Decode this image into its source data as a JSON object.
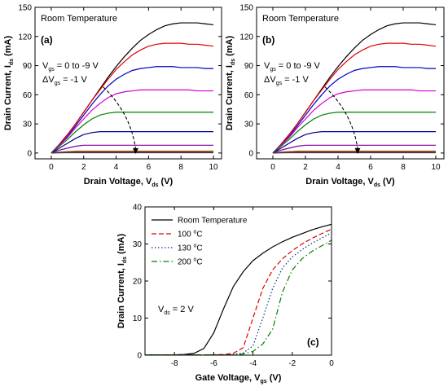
{
  "chart_data": [
    {
      "type": "line",
      "panel_label": "(a)",
      "annotation_title": "Room Temperature",
      "annotation_vgs": {
        "main": "V",
        "sub": "gs",
        "rest": " = 0 to -9 V"
      },
      "annotation_dvgs": {
        "main": "ΔV",
        "sub": "gs",
        "rest": " = -1 V"
      },
      "xlabel": {
        "main": "Drain Voltage, V",
        "sub": "ds",
        "unit": " (V)"
      },
      "ylabel": {
        "main": "Drain Current, I",
        "sub": "ds",
        "unit": " (mA)"
      },
      "xlim": [
        -1,
        10.5
      ],
      "ylim": [
        -6,
        150
      ],
      "xticks": [
        0,
        2,
        4,
        6,
        8,
        10
      ],
      "yticks": [
        0,
        30,
        60,
        90,
        120,
        150
      ],
      "x": [
        0,
        0.5,
        1,
        1.5,
        2,
        2.5,
        3,
        3.5,
        4,
        4.5,
        5,
        5.5,
        6,
        6.5,
        7,
        7.5,
        8,
        8.5,
        9,
        9.5,
        10
      ],
      "series": [
        {
          "color": "#000000",
          "values": [
            0,
            9,
            19,
            30,
            42,
            54,
            66,
            78,
            89,
            99,
            108,
            116,
            122,
            127,
            131,
            133,
            134,
            134,
            134,
            133,
            132
          ]
        },
        {
          "color": "#e00000",
          "values": [
            0,
            9,
            19,
            30,
            42,
            54,
            65,
            76,
            86,
            94,
            101,
            106,
            110,
            112,
            113,
            113,
            113,
            112,
            112,
            111,
            110
          ]
        },
        {
          "color": "#0000c0",
          "values": [
            0,
            8,
            17,
            28,
            39,
            50,
            60,
            69,
            76,
            81,
            85,
            87,
            88,
            89,
            89,
            89,
            88,
            88,
            88,
            87,
            87
          ]
        },
        {
          "color": "#d000d0",
          "values": [
            0,
            8,
            16,
            26,
            35,
            44,
            51,
            57,
            61,
            63,
            64,
            65,
            65,
            65,
            65,
            65,
            65,
            65,
            64,
            64,
            64
          ]
        },
        {
          "color": "#008000",
          "values": [
            0,
            7,
            14,
            22,
            29,
            35,
            39,
            41,
            42,
            42,
            42,
            42,
            42,
            42,
            42,
            42,
            42,
            42,
            42,
            42,
            42
          ]
        },
        {
          "color": "#000090",
          "values": [
            0,
            5,
            10,
            15,
            19,
            21,
            22,
            22,
            22,
            22,
            22,
            22,
            22,
            22,
            22,
            22,
            22,
            22,
            22,
            22,
            22
          ]
        },
        {
          "color": "#8000a0",
          "values": [
            0,
            3,
            5,
            7,
            8,
            8,
            8,
            8,
            8,
            8,
            8,
            8,
            8,
            8,
            8,
            8,
            8,
            8,
            8,
            8,
            8
          ]
        },
        {
          "color": "#808000",
          "values": [
            0,
            1,
            1.5,
            2,
            2,
            2,
            2,
            2,
            2,
            2,
            2,
            2,
            2,
            2,
            2,
            2,
            2,
            2,
            2,
            2,
            2
          ]
        },
        {
          "color": "#c00060",
          "values": [
            0,
            0.5,
            0.8,
            1,
            1,
            1,
            1,
            1,
            1,
            1,
            1,
            1,
            1,
            1,
            1,
            1,
            1,
            1,
            1,
            1,
            1
          ]
        },
        {
          "color": "#404040",
          "values": [
            0,
            0.2,
            0.3,
            0.3,
            0.3,
            0.3,
            0.3,
            0.3,
            0.3,
            0.3,
            0.3,
            0.3,
            0.3,
            0.3,
            0.3,
            0.3,
            0.3,
            0.3,
            0.3,
            0.3,
            0.3
          ]
        }
      ],
      "arrow": {
        "from": [
          3.2,
          68
        ],
        "to": [
          5.2,
          0
        ]
      }
    },
    {
      "type": "line",
      "panel_label": "(b)",
      "annotation_title": "Room Temperature",
      "annotation_vgs": {
        "main": "V",
        "sub": "gs",
        "rest": " = 0 to -9 V"
      },
      "annotation_dvgs": {
        "main": "ΔV",
        "sub": "gs",
        "rest": " = -1 V"
      },
      "xlabel": {
        "main": "Drain Voltage, V",
        "sub": "ds",
        "unit": " (V)"
      },
      "ylabel": {
        "main": "Drain Current, I",
        "sub": "ds",
        "unit": " (mA)"
      },
      "xlim": [
        -1,
        10.5
      ],
      "ylim": [
        -6,
        150
      ],
      "xticks": [
        0,
        2,
        4,
        6,
        8,
        10
      ],
      "yticks": [
        0,
        30,
        60,
        90,
        120,
        150
      ],
      "x": [
        0,
        0.5,
        1,
        1.5,
        2,
        2.5,
        3,
        3.5,
        4,
        4.5,
        5,
        5.5,
        6,
        6.5,
        7,
        7.5,
        8,
        8.5,
        9,
        9.5,
        10
      ],
      "series": [
        {
          "color": "#000000",
          "values": [
            0,
            9,
            19,
            30,
            42,
            54,
            66,
            78,
            89,
            99,
            108,
            116,
            122,
            127,
            131,
            133,
            134,
            134,
            134,
            133,
            132
          ]
        },
        {
          "color": "#e00000",
          "values": [
            0,
            9,
            19,
            30,
            42,
            54,
            65,
            76,
            86,
            94,
            101,
            106,
            110,
            112,
            113,
            113,
            113,
            112,
            112,
            111,
            110
          ]
        },
        {
          "color": "#0000c0",
          "values": [
            0,
            8,
            17,
            28,
            39,
            50,
            60,
            69,
            76,
            81,
            85,
            87,
            88,
            89,
            89,
            89,
            88,
            88,
            88,
            87,
            87
          ]
        },
        {
          "color": "#d000d0",
          "values": [
            0,
            8,
            16,
            26,
            35,
            44,
            51,
            57,
            61,
            63,
            64,
            65,
            65,
            65,
            65,
            65,
            65,
            65,
            64,
            64,
            64
          ]
        },
        {
          "color": "#008000",
          "values": [
            0,
            7,
            14,
            22,
            29,
            35,
            39,
            41,
            42,
            42,
            42,
            42,
            42,
            42,
            42,
            42,
            42,
            42,
            42,
            42,
            42
          ]
        },
        {
          "color": "#000090",
          "values": [
            0,
            5,
            10,
            15,
            19,
            21,
            22,
            22,
            22,
            22,
            22,
            22,
            22,
            22,
            22,
            22,
            22,
            22,
            22,
            22,
            22
          ]
        },
        {
          "color": "#8000a0",
          "values": [
            0,
            3,
            5,
            7,
            8,
            8,
            8,
            8,
            8,
            8,
            8,
            8,
            8,
            8,
            8,
            8,
            8,
            8,
            8,
            8,
            8
          ]
        },
        {
          "color": "#808000",
          "values": [
            0,
            1,
            1.5,
            2,
            2,
            2,
            2,
            2,
            2,
            2,
            2,
            2,
            2,
            2,
            2,
            2,
            2,
            2,
            2,
            2,
            2
          ]
        },
        {
          "color": "#c00060",
          "values": [
            0,
            0.5,
            0.8,
            1,
            1,
            1,
            1,
            1,
            1,
            1,
            1,
            1,
            1,
            1,
            1,
            1,
            1,
            1,
            1,
            1,
            1
          ]
        },
        {
          "color": "#404040",
          "values": [
            0,
            0.2,
            0.3,
            0.3,
            0.3,
            0.3,
            0.3,
            0.3,
            0.3,
            0.3,
            0.3,
            0.3,
            0.3,
            0.3,
            0.3,
            0.3,
            0.3,
            0.3,
            0.3,
            0.3,
            0.3
          ]
        }
      ],
      "arrow": {
        "from": [
          3.2,
          68
        ],
        "to": [
          5.2,
          0
        ]
      }
    },
    {
      "type": "line",
      "panel_label": "(c)",
      "annotation_vds": {
        "main": "V",
        "sub": "ds",
        "rest": " = 2 V"
      },
      "xlabel": {
        "main": "Gate Voltage, V",
        "sub": "gs",
        "unit": " (V)"
      },
      "ylabel": {
        "main": "Drain Current, I",
        "sub": "ds",
        "unit": " (mA)"
      },
      "xlim": [
        -9.5,
        0
      ],
      "ylim": [
        0,
        40
      ],
      "xticks": [
        -8,
        -6,
        -4,
        -2,
        0
      ],
      "yticks": [
        0,
        10,
        20,
        30,
        40
      ],
      "legend_position": "top-left",
      "x": [
        -9.5,
        -9,
        -8.5,
        -8,
        -7.5,
        -7,
        -6.5,
        -6,
        -5.5,
        -5,
        -4.5,
        -4,
        -3.5,
        -3,
        -2.5,
        -2,
        -1.5,
        -1,
        -0.5,
        0
      ],
      "series": [
        {
          "name": "Room Temperature",
          "degree": false,
          "color": "#000000",
          "dash": "",
          "values": [
            0.1,
            0.1,
            0.1,
            0.1,
            0.2,
            0.5,
            1.8,
            6.0,
            12.5,
            18.5,
            22.5,
            25.5,
            27.5,
            29.2,
            30.6,
            31.8,
            32.8,
            33.8,
            34.6,
            35.3
          ]
        },
        {
          "name": "100 ",
          "degree": true,
          "deg_unit": "C",
          "color": "#e00000",
          "dash": "6,3",
          "values": [
            0.1,
            0.1,
            0.1,
            0.1,
            0.1,
            0.1,
            0.1,
            0.1,
            0.2,
            0.5,
            2.0,
            10.0,
            18.0,
            23.0,
            26.0,
            28.2,
            30.0,
            31.5,
            32.8,
            34.0
          ]
        },
        {
          "name": "130 ",
          "degree": true,
          "deg_unit": "C",
          "color": "#003080",
          "dash": "1.5,2.5",
          "values": [
            0.1,
            0.1,
            0.1,
            0.1,
            0.1,
            0.1,
            0.1,
            0.1,
            0.1,
            0.2,
            0.6,
            2.5,
            10.0,
            18.0,
            23.5,
            26.5,
            28.5,
            30.2,
            31.6,
            33.0
          ]
        },
        {
          "name": "200 ",
          "degree": true,
          "deg_unit": "C",
          "color": "#008000",
          "dash": "7,3,1.5,3",
          "values": [
            0.1,
            0.1,
            0.1,
            0.1,
            0.1,
            0.1,
            0.1,
            0.1,
            0.1,
            0.1,
            0.3,
            1.0,
            3.0,
            7.0,
            17.0,
            23.0,
            26.0,
            28.0,
            29.5,
            31.0
          ]
        }
      ]
    }
  ]
}
